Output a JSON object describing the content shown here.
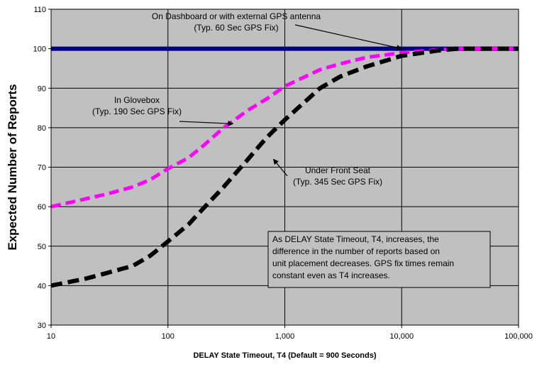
{
  "chart_data": {
    "type": "line",
    "x_scale": "log",
    "xlabel": "DELAY State Timeout, T4 (Default = 900 Seconds)",
    "ylabel": "Expected Number of Reports",
    "xlim": [
      10,
      100000
    ],
    "ylim": [
      30,
      110
    ],
    "x_ticks": [
      10,
      100,
      1000,
      10000,
      100000
    ],
    "x_tick_labels": [
      "10",
      "100",
      "1,000",
      "10,000",
      "100,000"
    ],
    "y_ticks": [
      30,
      40,
      50,
      60,
      70,
      80,
      90,
      100,
      110
    ],
    "grid": true,
    "series": [
      {
        "color": "#000080",
        "x": [
          10,
          100,
          1000,
          10000,
          100000
        ],
        "y": [
          100,
          100,
          100,
          100,
          100
        ]
      },
      {
        "color": "#FF00FF",
        "x": [
          10,
          20,
          30,
          50,
          70,
          100,
          150,
          200,
          300,
          500,
          700,
          1000,
          2000,
          3000,
          5000,
          10000,
          20000,
          30000,
          50000,
          100000
        ],
        "y": [
          60,
          62,
          63.2,
          65,
          66.8,
          69.6,
          72.4,
          75.4,
          80,
          84.7,
          87.3,
          90.5,
          94.7,
          96.2,
          97.8,
          99,
          99.7,
          100,
          100,
          100
        ]
      },
      {
        "color": "#000000",
        "x": [
          10,
          20,
          30,
          50,
          70,
          100,
          150,
          200,
          300,
          500,
          700,
          1000,
          2000,
          3000,
          5000,
          10000,
          20000,
          30000,
          50000,
          100000
        ],
        "y": [
          40,
          41.8,
          43.2,
          45,
          47.5,
          51.2,
          55.5,
          59.5,
          65,
          72.5,
          77.5,
          82,
          90,
          93,
          95.5,
          98.2,
          99.5,
          100,
          100,
          100
        ]
      }
    ],
    "annotations": [
      {
        "lines": [
          "On Dashboard or with external GPS antenna",
          "(Typ. 60 Sec GPS Fix)"
        ],
        "arrow_to": [
          10000,
          100
        ]
      },
      {
        "lines": [
          "In Glovebox",
          "(Typ. 190 Sec GPS Fix)"
        ],
        "arrow_to": [
          360,
          81
        ]
      },
      {
        "lines": [
          "Under Front Seat",
          "(Typ. 345 Sec GPS Fix)"
        ],
        "arrow_to": [
          800,
          72
        ]
      }
    ],
    "note_lines": [
      "As DELAY State Timeout, T4, increases, the",
      "difference in the number of reports based on",
      "unit placement decreases.  GPS fix times remain",
      "constant even as T4 increases."
    ]
  }
}
